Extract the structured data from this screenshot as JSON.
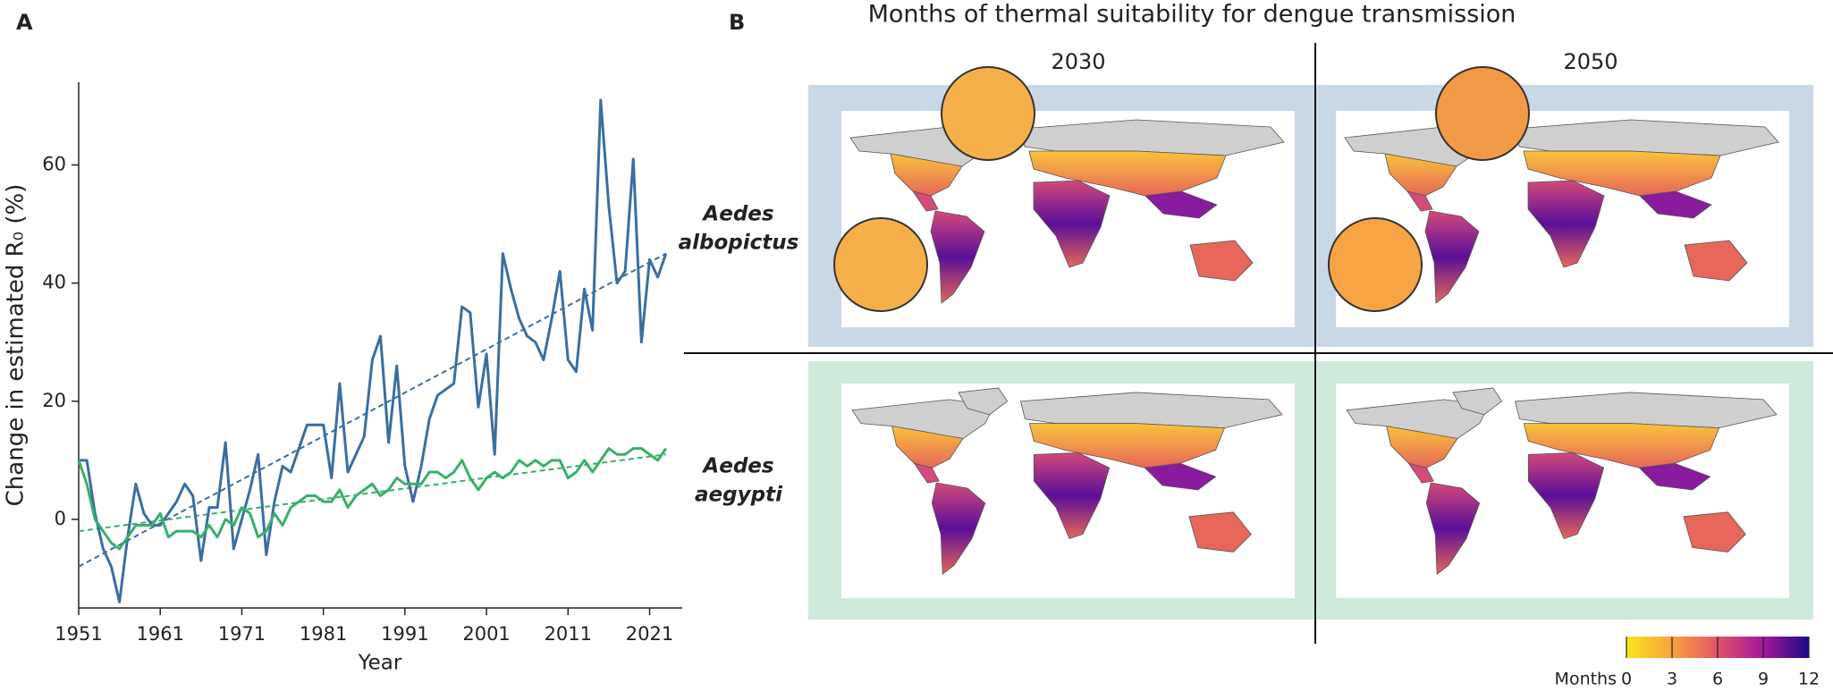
{
  "chart_data": [
    {
      "type": "line",
      "label": "A",
      "xlabel": "Year",
      "ylabel": "Change in estimated R₀ (%)",
      "x": [
        1951,
        1952,
        1953,
        1954,
        1955,
        1956,
        1957,
        1958,
        1959,
        1960,
        1961,
        1962,
        1963,
        1964,
        1965,
        1966,
        1967,
        1968,
        1969,
        1970,
        1971,
        1972,
        1973,
        1974,
        1975,
        1976,
        1977,
        1978,
        1979,
        1980,
        1981,
        1982,
        1983,
        1984,
        1985,
        1986,
        1987,
        1988,
        1989,
        1990,
        1991,
        1992,
        1993,
        1994,
        1995,
        1996,
        1997,
        1998,
        1999,
        2000,
        2001,
        2002,
        2003,
        2004,
        2005,
        2006,
        2007,
        2008,
        2009,
        2010,
        2011,
        2012,
        2013,
        2014,
        2015,
        2016,
        2017,
        2018,
        2019,
        2020,
        2021,
        2022,
        2023
      ],
      "series": [
        {
          "color": "#3a6e9f",
          "values": [
            10,
            10,
            1,
            -5,
            -8,
            -14,
            -3,
            6,
            1,
            -1,
            -1,
            1,
            3,
            6,
            4,
            -7,
            2,
            2,
            13,
            -5,
            0,
            5,
            11,
            -6,
            3,
            9,
            8,
            12,
            16,
            16,
            16,
            7,
            23,
            8,
            11,
            14,
            27,
            31,
            13,
            26,
            9,
            3,
            9,
            17,
            21,
            22,
            23,
            36,
            35,
            19,
            28,
            11,
            45,
            39,
            34,
            31,
            30,
            27,
            34,
            42,
            27,
            25,
            39,
            32,
            71,
            53,
            40,
            42,
            61,
            30,
            44,
            41,
            45
          ]
        },
        {
          "color": "#3aaf6a",
          "values": [
            10,
            6,
            0,
            -2,
            -4,
            -5,
            -3,
            -1,
            -1,
            -1,
            1,
            -3,
            -2,
            -2,
            -2,
            -3,
            -1,
            -3,
            0,
            -1,
            2,
            1,
            -3,
            -2,
            1,
            -1,
            2,
            3,
            4,
            4,
            3,
            3,
            5,
            2,
            4,
            5,
            6,
            4,
            5,
            7,
            6,
            6,
            6,
            8,
            8,
            7,
            8,
            10,
            7,
            5,
            7,
            8,
            7,
            8,
            10,
            9,
            10,
            9,
            10,
            10,
            7,
            8,
            10,
            8,
            10,
            12,
            11,
            11,
            12,
            12,
            11,
            10,
            12
          ]
        }
      ],
      "trend_lines": [
        {
          "color": "#3a6e9f",
          "x": [
            1951,
            2023
          ],
          "values": [
            -8,
            45
          ]
        },
        {
          "color": "#3aaf6a",
          "x": [
            1951,
            2023
          ],
          "values": [
            -2,
            11
          ]
        }
      ],
      "xlim": [
        1951,
        2025
      ],
      "xticks": [
        1951,
        1961,
        1971,
        1981,
        1991,
        2001,
        2011,
        2021
      ],
      "ylim": [
        -15,
        74
      ],
      "yticks": [
        0,
        20,
        40,
        60
      ]
    },
    {
      "type": "map",
      "label": "B",
      "title": "Months of thermal suitability for dengue transmission",
      "columns": [
        "2030",
        "2050"
      ],
      "rows": [
        {
          "label": [
            "Aedes",
            "albopictus"
          ],
          "color": "#3a6ea5",
          "frame": "#c9d8e6"
        },
        {
          "label": [
            "Aedes",
            "aegypti"
          ],
          "color": "#3aaf6a",
          "frame": "#cdeadb"
        }
      ],
      "colorbar": {
        "label": "Months",
        "lim": [
          0,
          12
        ],
        "ticks": [
          0,
          3,
          6,
          9,
          12
        ]
      }
    }
  ]
}
